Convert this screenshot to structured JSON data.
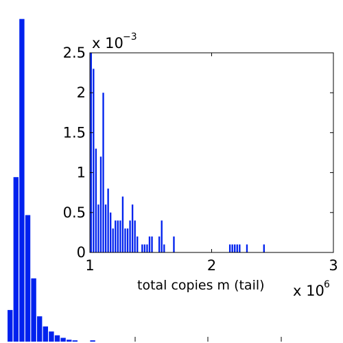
{
  "chart_data": [
    {
      "type": "bar",
      "name": "background-histogram",
      "title": "",
      "xlabel": "",
      "ylabel": "",
      "values": [
        0.25,
        1.3,
        2.55,
        1.0,
        0.5,
        0.2,
        0.12,
        0.08,
        0.05,
        0.03,
        0.015,
        0.01,
        0.0,
        0.0,
        0.01
      ],
      "ylim": [
        0,
        2.7
      ],
      "bar_color": "#0022ee"
    },
    {
      "type": "bar",
      "name": "inset-histogram",
      "title": "",
      "xlabel": "total copies m (tail)",
      "ylabel": "",
      "x_multiplier": "x 10^6",
      "y_multiplier": "x 10^-3",
      "xlim": [
        1,
        3
      ],
      "ylim": [
        0,
        2.5
      ],
      "x_ticks": [
        "1",
        "2",
        "3"
      ],
      "y_ticks": [
        "0",
        "0.5",
        "1",
        "1.5",
        "2",
        "2.5"
      ],
      "grid": false,
      "bar_color": "#0022ee",
      "bin_width": 0.02,
      "bars": [
        {
          "x": 1.01,
          "y": 2.5
        },
        {
          "x": 1.03,
          "y": 2.3
        },
        {
          "x": 1.05,
          "y": 1.3
        },
        {
          "x": 1.07,
          "y": 0.6
        },
        {
          "x": 1.09,
          "y": 1.2
        },
        {
          "x": 1.11,
          "y": 2.0
        },
        {
          "x": 1.13,
          "y": 0.6
        },
        {
          "x": 1.15,
          "y": 0.8
        },
        {
          "x": 1.17,
          "y": 0.5
        },
        {
          "x": 1.19,
          "y": 0.3
        },
        {
          "x": 1.21,
          "y": 0.4
        },
        {
          "x": 1.23,
          "y": 0.4
        },
        {
          "x": 1.25,
          "y": 0.4
        },
        {
          "x": 1.27,
          "y": 0.7
        },
        {
          "x": 1.29,
          "y": 0.3
        },
        {
          "x": 1.31,
          "y": 0.3
        },
        {
          "x": 1.33,
          "y": 0.4
        },
        {
          "x": 1.35,
          "y": 0.6
        },
        {
          "x": 1.37,
          "y": 0.4
        },
        {
          "x": 1.39,
          "y": 0.2
        },
        {
          "x": 1.43,
          "y": 0.1
        },
        {
          "x": 1.45,
          "y": 0.1
        },
        {
          "x": 1.47,
          "y": 0.1
        },
        {
          "x": 1.49,
          "y": 0.2
        },
        {
          "x": 1.51,
          "y": 0.2
        },
        {
          "x": 1.57,
          "y": 0.2
        },
        {
          "x": 1.59,
          "y": 0.4
        },
        {
          "x": 1.61,
          "y": 0.1
        },
        {
          "x": 1.69,
          "y": 0.2
        },
        {
          "x": 2.15,
          "y": 0.1
        },
        {
          "x": 2.17,
          "y": 0.1
        },
        {
          "x": 2.19,
          "y": 0.1
        },
        {
          "x": 2.21,
          "y": 0.1
        },
        {
          "x": 2.23,
          "y": 0.1
        },
        {
          "x": 2.29,
          "y": 0.1
        },
        {
          "x": 2.43,
          "y": 0.1
        }
      ]
    }
  ]
}
